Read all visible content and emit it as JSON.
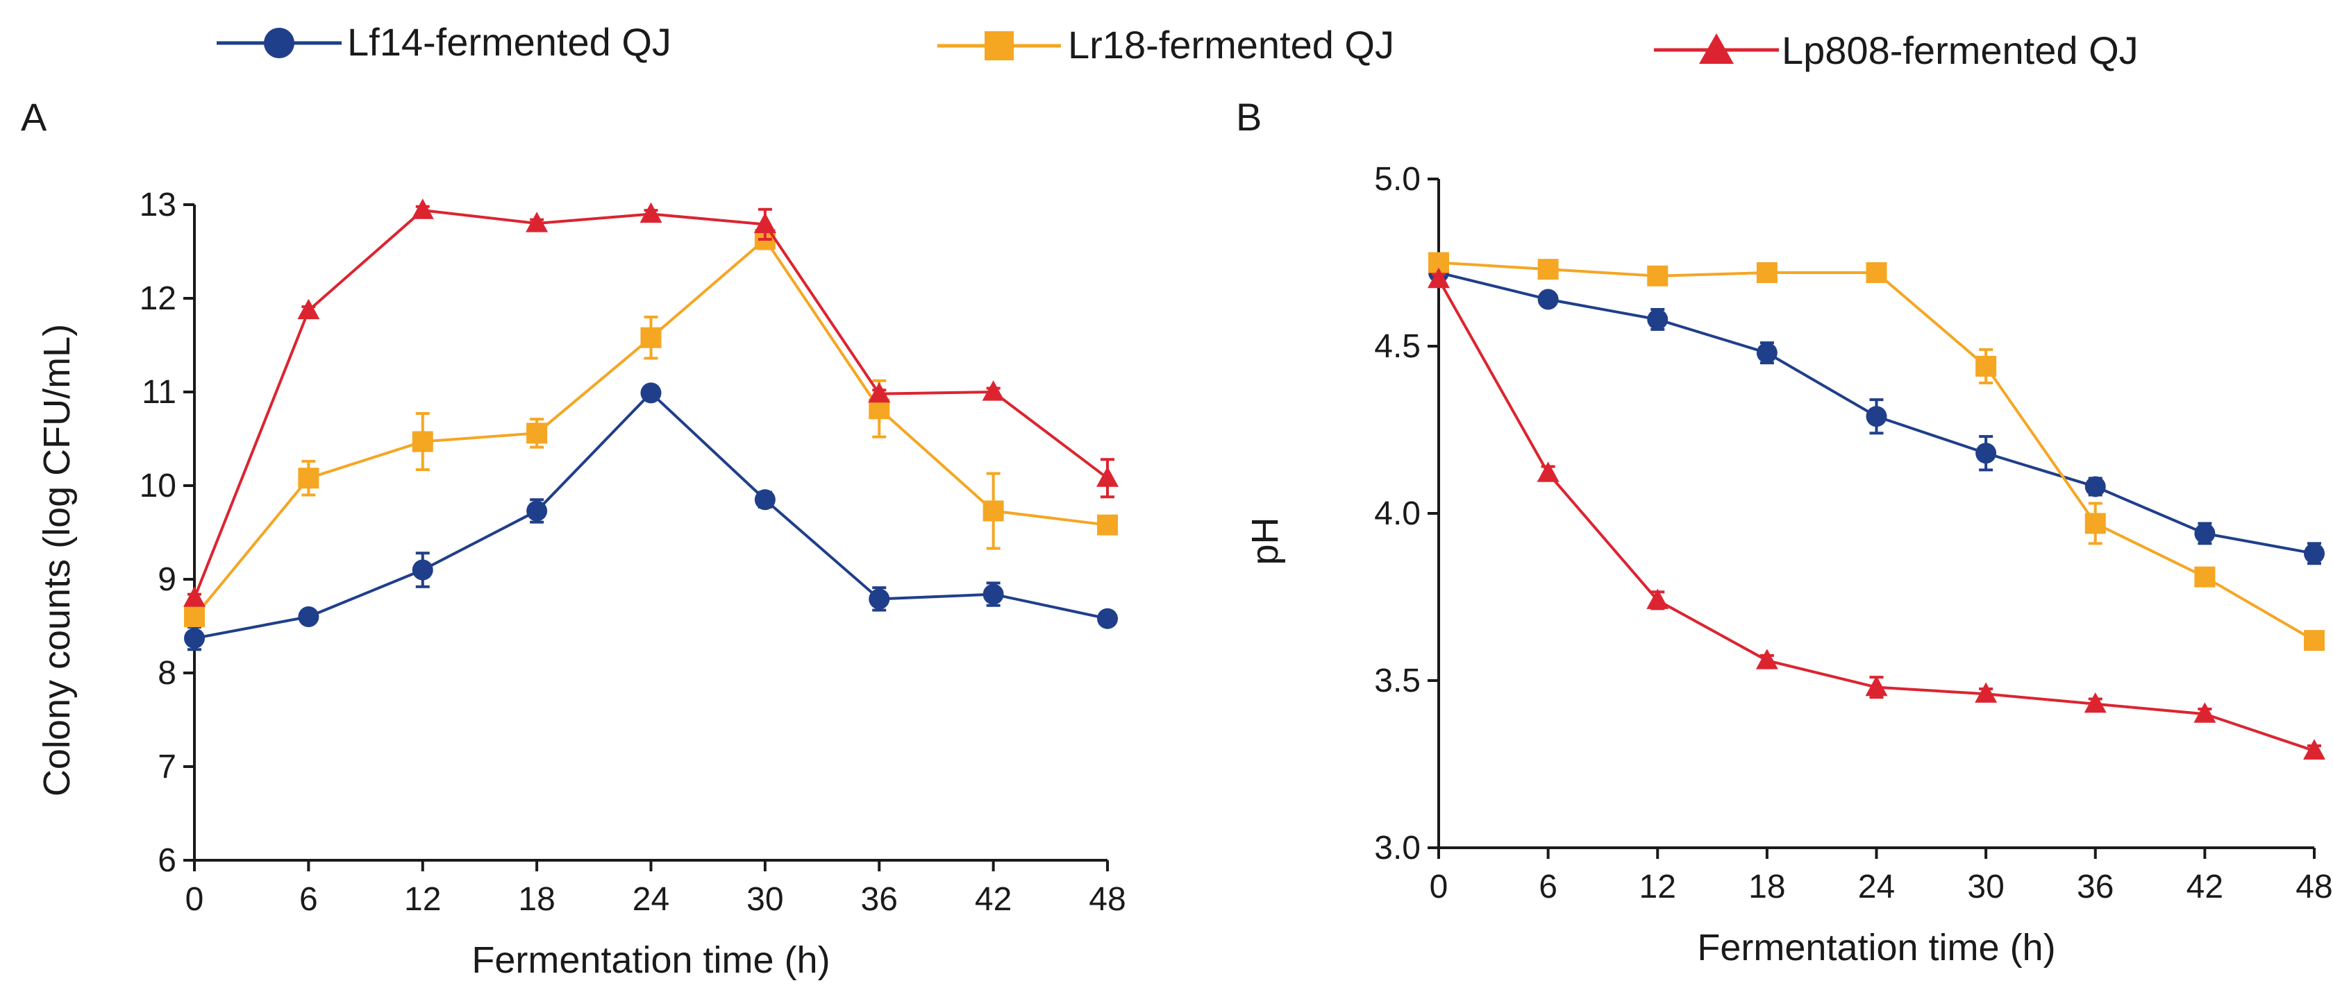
{
  "legend": [
    {
      "name": "Lf14-fermented QJ",
      "color": "#1f3f8a",
      "marker": "circle"
    },
    {
      "name": "Lr18-fermented QJ",
      "color": "#f5a623",
      "marker": "square"
    },
    {
      "name": "Lp808-fermented QJ",
      "color": "#dc2430",
      "marker": "triangle"
    }
  ],
  "chart_data": [
    {
      "panel": "A",
      "type": "line",
      "xlabel": "Fermentation time (h)",
      "ylabel": "Colony counts (log CFU/mL)",
      "x": [
        0,
        6,
        12,
        18,
        24,
        30,
        36,
        42,
        48
      ],
      "xticks": [
        "0",
        "6",
        "12",
        "18",
        "24",
        "30",
        "36",
        "42",
        "48"
      ],
      "xlim": [
        0,
        48
      ],
      "ylim": [
        6,
        13
      ],
      "yticks": [
        "6",
        "7",
        "8",
        "9",
        "10",
        "11",
        "12",
        "13"
      ],
      "grid": false,
      "series": [
        {
          "name": "Lf14-fermented QJ",
          "values": [
            8.37,
            8.6,
            9.1,
            9.73,
            10.99,
            9.85,
            8.79,
            8.84,
            8.58
          ],
          "errors": [
            0.12,
            0.05,
            0.18,
            0.12,
            0.05,
            0.08,
            0.12,
            0.12,
            0.05
          ]
        },
        {
          "name": "Lr18-fermented QJ",
          "values": [
            8.6,
            10.08,
            10.47,
            10.56,
            11.58,
            12.63,
            10.82,
            9.73,
            9.58
          ],
          "errors": [
            0.08,
            0.18,
            0.3,
            0.15,
            0.22,
            0.1,
            0.3,
            0.4,
            0.06
          ]
        },
        {
          "name": "Lp808-fermented QJ",
          "values": [
            8.8,
            11.87,
            12.94,
            12.8,
            12.9,
            12.79,
            10.98,
            11.0,
            10.08
          ],
          "errors": [
            0.04,
            0.04,
            0.04,
            0.04,
            0.04,
            0.16,
            0.04,
            0.04,
            0.2
          ]
        }
      ]
    },
    {
      "panel": "B",
      "type": "line",
      "xlabel": "Fermentation time (h)",
      "ylabel": "pH",
      "x": [
        0,
        6,
        12,
        18,
        24,
        30,
        36,
        42,
        48
      ],
      "xticks": [
        "0",
        "6",
        "12",
        "18",
        "24",
        "30",
        "36",
        "42",
        "48"
      ],
      "xlim": [
        0,
        48
      ],
      "ylim": [
        3.0,
        5.0
      ],
      "yticks": [
        "3.0",
        "3.5",
        "4.0",
        "4.5",
        "5.0"
      ],
      "grid": false,
      "series": [
        {
          "name": "Lf14-fermented QJ",
          "values": [
            4.72,
            4.64,
            4.58,
            4.48,
            4.29,
            4.18,
            4.08,
            3.94,
            3.88
          ],
          "errors": [
            0.02,
            0.015,
            0.03,
            0.03,
            0.05,
            0.05,
            0.025,
            0.03,
            0.03
          ]
        },
        {
          "name": "Lr18-fermented QJ",
          "values": [
            4.75,
            4.73,
            4.71,
            4.72,
            4.72,
            4.44,
            3.97,
            3.81,
            3.62
          ],
          "errors": [
            0.015,
            0.015,
            0.015,
            0.015,
            0.015,
            0.05,
            0.06,
            0.02,
            0.02
          ]
        },
        {
          "name": "Lp808-fermented QJ",
          "values": [
            4.7,
            4.12,
            3.74,
            3.56,
            3.48,
            3.46,
            3.43,
            3.4,
            3.29
          ],
          "errors": [
            0.015,
            0.02,
            0.025,
            0.015,
            0.03,
            0.015,
            0.015,
            0.015,
            0.015
          ]
        }
      ]
    }
  ]
}
